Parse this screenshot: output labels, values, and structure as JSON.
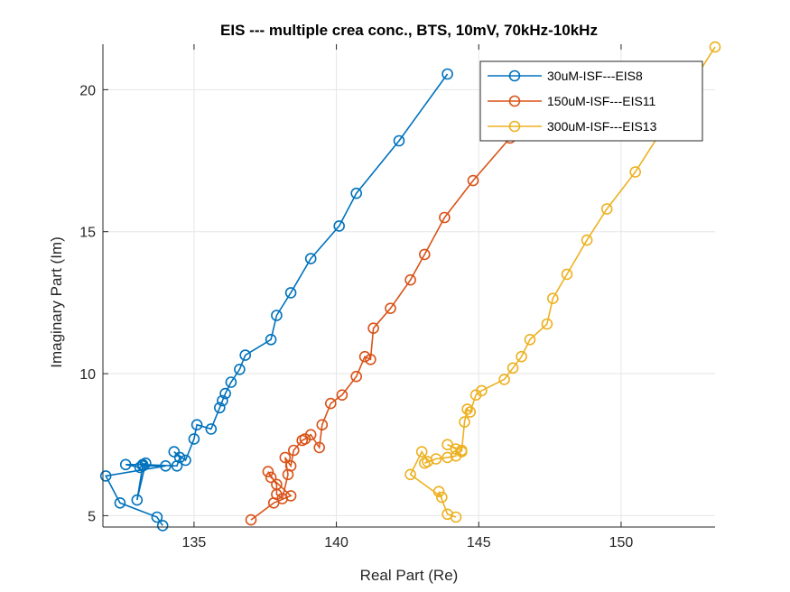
{
  "chart_data": {
    "type": "line",
    "title": "EIS --- multiple crea conc., BTS, 10mV, 70kHz-10kHz",
    "xlabel": "Real Part (Re)",
    "ylabel": "Imaginary Part (Im)",
    "xlim": [
      131.8,
      153.3
    ],
    "ylim": [
      4.6,
      21.6
    ],
    "xticks": [
      135,
      140,
      145,
      150
    ],
    "yticks": [
      5,
      10,
      15,
      20
    ],
    "grid": true,
    "legend_position": "top-right",
    "series": [
      {
        "name": "30uM-ISF---EIS8",
        "color": "#0072BD",
        "x": [
          143.9,
          142.2,
          140.7,
          140.1,
          139.1,
          138.4,
          137.9,
          137.7,
          136.8,
          136.6,
          136.3,
          136.1,
          136.0,
          135.9,
          135.6,
          135.1,
          135.0,
          134.7,
          134.3,
          134.5,
          134.4,
          133.2,
          132.6,
          133.1,
          133.3,
          133.0,
          133.2,
          134.0,
          131.9,
          132.4,
          133.7,
          133.9
        ],
        "y": [
          20.55,
          18.2,
          16.35,
          15.2,
          14.05,
          12.85,
          12.05,
          11.2,
          10.65,
          10.15,
          9.7,
          9.3,
          9.05,
          8.8,
          8.05,
          8.2,
          7.7,
          6.95,
          7.25,
          7.05,
          6.75,
          6.8,
          6.8,
          6.7,
          6.85,
          5.55,
          6.75,
          6.75,
          6.4,
          5.45,
          4.95,
          4.65
        ]
      },
      {
        "name": "150uM-ISF---EIS11",
        "color": "#D95319",
        "x": [
          146.1,
          144.8,
          143.8,
          143.1,
          142.6,
          141.9,
          141.3,
          141.2,
          141.0,
          140.7,
          140.2,
          139.8,
          139.5,
          139.4,
          139.1,
          138.9,
          138.8,
          138.5,
          138.4,
          138.2,
          138.3,
          138.1,
          137.9,
          137.9,
          137.6,
          137.7,
          138.4,
          137.8,
          137.0
        ],
        "y": [
          18.3,
          16.8,
          15.5,
          14.2,
          13.3,
          12.3,
          11.6,
          10.5,
          10.6,
          9.9,
          9.25,
          8.95,
          8.2,
          7.4,
          7.85,
          7.7,
          7.65,
          7.3,
          6.75,
          7.05,
          6.45,
          5.6,
          5.75,
          6.1,
          6.55,
          6.35,
          5.7,
          5.45,
          4.85
        ]
      },
      {
        "name": "300uM-ISF---EIS13",
        "color": "#EDB120",
        "x": [
          153.3,
          150.5,
          149.5,
          148.8,
          148.1,
          147.6,
          147.4,
          146.8,
          146.5,
          146.2,
          145.9,
          145.1,
          144.9,
          144.7,
          144.6,
          144.5,
          144.4,
          144.4,
          143.9,
          144.2,
          144.2,
          143.9,
          143.5,
          143.1,
          143.2,
          143.0,
          142.6,
          143.7,
          143.6,
          143.9,
          144.2
        ],
        "y": [
          21.5,
          17.1,
          15.8,
          14.7,
          13.5,
          12.65,
          11.75,
          11.2,
          10.6,
          10.2,
          9.8,
          9.4,
          9.25,
          8.65,
          8.75,
          8.3,
          7.25,
          7.3,
          7.5,
          7.35,
          7.1,
          7.05,
          7.0,
          6.85,
          6.9,
          7.25,
          6.45,
          5.65,
          5.85,
          5.05,
          4.95
        ]
      }
    ]
  }
}
